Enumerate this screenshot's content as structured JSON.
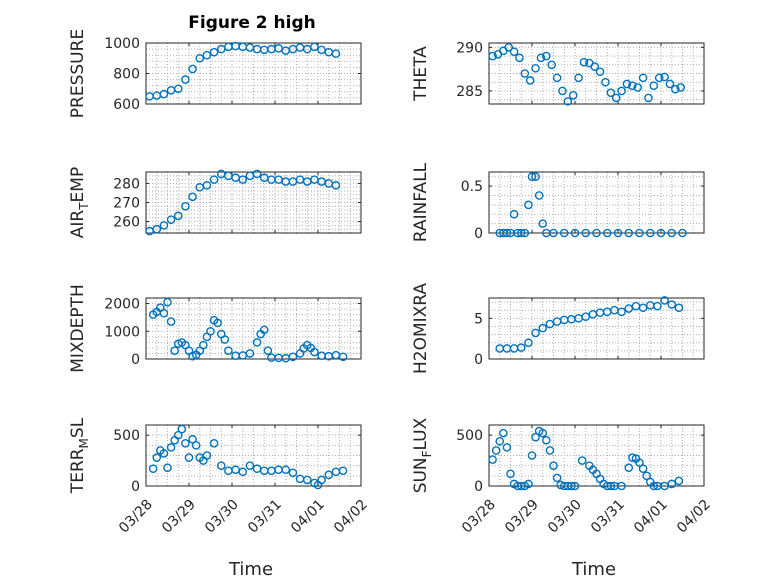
{
  "chart_data": [
    {
      "type": "scatter",
      "ylabel": "PRESSURE",
      "title": "Figure 2 high",
      "ylim": [
        600,
        1000
      ],
      "yticks": [
        600,
        800,
        1000
      ],
      "grid": true,
      "x": [
        "03/28 02:00",
        "03/28 06:00",
        "03/28 10:00",
        "03/28 14:00",
        "03/28 18:00",
        "03/28 22:00",
        "03/29 02:00",
        "03/29 06:00",
        "03/29 10:00",
        "03/29 14:00",
        "03/29 18:00",
        "03/29 22:00",
        "03/30 02:00",
        "03/30 06:00",
        "03/30 10:00",
        "03/30 14:00",
        "03/30 18:00",
        "03/30 22:00",
        "03/31 02:00",
        "03/31 06:00",
        "03/31 10:00",
        "03/31 14:00",
        "03/31 18:00",
        "03/31 22:00",
        "04/01 02:00",
        "04/01 06:00",
        "04/01 10:00"
      ],
      "y": [
        650,
        655,
        665,
        690,
        700,
        760,
        830,
        900,
        920,
        940,
        960,
        975,
        980,
        975,
        970,
        960,
        955,
        960,
        965,
        950,
        960,
        970,
        960,
        975,
        955,
        940,
        930
      ]
    },
    {
      "type": "scatter",
      "ylabel": "THETA",
      "ylim": [
        283.5,
        290.5
      ],
      "yticks": [
        285,
        290
      ],
      "grid": true,
      "x": [
        "03/28 02:00",
        "03/28 05:00",
        "03/28 08:00",
        "03/28 11:00",
        "03/28 14:00",
        "03/28 17:00",
        "03/28 20:00",
        "03/28 23:00",
        "03/29 02:00",
        "03/29 05:00",
        "03/29 08:00",
        "03/29 11:00",
        "03/29 14:00",
        "03/29 17:00",
        "03/29 20:00",
        "03/29 23:00",
        "03/30 02:00",
        "03/30 05:00",
        "03/30 08:00",
        "03/30 11:00",
        "03/30 14:00",
        "03/30 17:00",
        "03/30 20:00",
        "03/30 23:00",
        "03/31 02:00",
        "03/31 05:00",
        "03/31 08:00",
        "03/31 11:00",
        "03/31 14:00",
        "03/31 17:00",
        "03/31 20:00",
        "03/31 23:00",
        "04/01 02:00",
        "04/01 05:00",
        "04/01 08:00",
        "04/01 11:00"
      ],
      "y": [
        289,
        289.2,
        289.6,
        290,
        289.5,
        288.8,
        287,
        286.2,
        287.6,
        288.8,
        289,
        288,
        286.5,
        285,
        283.8,
        284.5,
        286.5,
        288.3,
        288.2,
        287.8,
        287.2,
        286,
        284.8,
        284.2,
        285,
        285.8,
        285.6,
        285.4,
        286.5,
        284.2,
        285.6,
        286.5,
        286.6,
        285.8,
        285.2,
        285.4
      ]
    },
    {
      "type": "scatter",
      "ylabel": "AIR_TEMP",
      "ylim": [
        254,
        286
      ],
      "yticks": [
        260,
        270,
        280
      ],
      "grid": true,
      "x": [
        "03/28 02:00",
        "03/28 06:00",
        "03/28 10:00",
        "03/28 14:00",
        "03/28 18:00",
        "03/28 22:00",
        "03/29 02:00",
        "03/29 06:00",
        "03/29 10:00",
        "03/29 14:00",
        "03/29 18:00",
        "03/29 22:00",
        "03/30 02:00",
        "03/30 06:00",
        "03/30 10:00",
        "03/30 14:00",
        "03/30 18:00",
        "03/30 22:00",
        "03/31 02:00",
        "03/31 06:00",
        "03/31 10:00",
        "03/31 14:00",
        "03/31 18:00",
        "03/31 22:00",
        "04/01 02:00",
        "04/01 06:00",
        "04/01 10:00"
      ],
      "y": [
        255,
        256,
        258,
        261,
        263,
        268,
        273,
        278,
        279,
        282,
        285,
        284,
        283,
        282,
        284,
        285,
        283,
        282,
        282,
        281,
        281,
        282,
        281,
        282,
        281,
        280,
        279
      ]
    },
    {
      "type": "scatter",
      "ylabel": "RAINFALL",
      "ylim": [
        0,
        0.65
      ],
      "yticks": [
        0,
        0.5
      ],
      "grid": true,
      "x": [
        "03/28 06:00",
        "03/28 08:00",
        "03/28 10:00",
        "03/28 12:00",
        "03/28 14:00",
        "03/28 16:00",
        "03/28 18:00",
        "03/28 20:00",
        "03/28 22:00",
        "03/29 00:00",
        "03/29 02:00",
        "03/29 04:00",
        "03/29 06:00",
        "03/29 08:00",
        "03/29 12:00",
        "03/29 18:00",
        "03/30 00:00",
        "03/30 06:00",
        "03/30 12:00",
        "03/30 18:00",
        "03/31 00:00",
        "03/31 06:00",
        "03/31 12:00",
        "03/31 18:00",
        "04/01 00:00",
        "04/01 06:00",
        "04/01 12:00"
      ],
      "y": [
        0,
        0,
        0,
        0,
        0.2,
        0,
        0,
        0,
        0.3,
        0.6,
        0.6,
        0.4,
        0.1,
        0,
        0,
        0,
        0,
        0,
        0,
        0,
        0,
        0,
        0,
        0,
        0,
        0,
        0
      ]
    },
    {
      "type": "scatter",
      "ylabel": "MIXDEPTH",
      "ylim": [
        0,
        2200
      ],
      "yticks": [
        0,
        1000,
        2000
      ],
      "grid": true,
      "x": [
        "03/28 04:00",
        "03/28 06:00",
        "03/28 08:00",
        "03/28 10:00",
        "03/28 12:00",
        "03/28 14:00",
        "03/28 16:00",
        "03/28 18:00",
        "03/28 20:00",
        "03/28 22:00",
        "03/29 00:00",
        "03/29 02:00",
        "03/29 04:00",
        "03/29 06:00",
        "03/29 08:00",
        "03/29 10:00",
        "03/29 12:00",
        "03/29 14:00",
        "03/29 16:00",
        "03/29 18:00",
        "03/29 20:00",
        "03/29 22:00",
        "03/30 02:00",
        "03/30 06:00",
        "03/30 10:00",
        "03/30 14:00",
        "03/30 16:00",
        "03/30 18:00",
        "03/30 20:00",
        "03/30 22:00",
        "03/31 02:00",
        "03/31 06:00",
        "03/31 10:00",
        "03/31 14:00",
        "03/31 16:00",
        "03/31 18:00",
        "03/31 20:00",
        "03/31 22:00",
        "04/01 02:00",
        "04/01 06:00",
        "04/01 10:00",
        "04/01 14:00"
      ],
      "y": [
        1600,
        1700,
        1850,
        1650,
        2050,
        1350,
        300,
        550,
        600,
        500,
        300,
        100,
        150,
        300,
        500,
        800,
        1000,
        1400,
        1300,
        900,
        700,
        300,
        120,
        130,
        200,
        600,
        900,
        1050,
        300,
        50,
        40,
        30,
        80,
        200,
        380,
        500,
        400,
        250,
        120,
        100,
        140,
        80
      ]
    },
    {
      "type": "scatter",
      "ylabel": "H2OMIXRA",
      "ylim": [
        0,
        7.5
      ],
      "yticks": [
        0,
        5
      ],
      "grid": true,
      "x": [
        "03/28 06:00",
        "03/28 10:00",
        "03/28 14:00",
        "03/28 18:00",
        "03/28 22:00",
        "03/29 02:00",
        "03/29 06:00",
        "03/29 10:00",
        "03/29 14:00",
        "03/29 18:00",
        "03/29 22:00",
        "03/30 02:00",
        "03/30 06:00",
        "03/30 10:00",
        "03/30 14:00",
        "03/30 18:00",
        "03/30 22:00",
        "03/31 02:00",
        "03/31 06:00",
        "03/31 10:00",
        "03/31 14:00",
        "03/31 18:00",
        "03/31 22:00",
        "04/01 02:00",
        "04/01 06:00",
        "04/01 10:00"
      ],
      "y": [
        1.3,
        1.3,
        1.3,
        1.4,
        2,
        3.2,
        3.8,
        4.3,
        4.6,
        4.8,
        4.9,
        5,
        5.2,
        5.5,
        5.7,
        5.8,
        6,
        5.8,
        6.2,
        6.5,
        6.3,
        6.6,
        6.5,
        7.2,
        6.7,
        6.3
      ]
    },
    {
      "type": "scatter",
      "ylabel": "TERR_MSL",
      "ylim": [
        0,
        600
      ],
      "yticks": [
        0,
        500
      ],
      "grid": true,
      "x": [
        "03/28 04:00",
        "03/28 06:00",
        "03/28 08:00",
        "03/28 10:00",
        "03/28 12:00",
        "03/28 14:00",
        "03/28 16:00",
        "03/28 18:00",
        "03/28 20:00",
        "03/28 22:00",
        "03/29 00:00",
        "03/29 02:00",
        "03/29 04:00",
        "03/29 06:00",
        "03/29 08:00",
        "03/29 10:00",
        "03/29 14:00",
        "03/29 18:00",
        "03/29 22:00",
        "03/30 02:00",
        "03/30 06:00",
        "03/30 10:00",
        "03/30 14:00",
        "03/30 18:00",
        "03/30 22:00",
        "03/31 02:00",
        "03/31 06:00",
        "03/31 10:00",
        "03/31 14:00",
        "03/31 18:00",
        "03/31 22:00",
        "04/01 00:00",
        "04/01 02:00",
        "04/01 06:00",
        "04/01 10:00",
        "04/01 14:00"
      ],
      "y": [
        170,
        280,
        350,
        320,
        180,
        380,
        450,
        500,
        560,
        420,
        280,
        460,
        400,
        280,
        250,
        300,
        420,
        200,
        150,
        160,
        140,
        200,
        170,
        150,
        150,
        160,
        160,
        130,
        70,
        60,
        30,
        10,
        60,
        110,
        140,
        150
      ]
    },
    {
      "type": "scatter",
      "ylabel": "SUN_FLUX",
      "ylim": [
        0,
        600
      ],
      "yticks": [
        0,
        500
      ],
      "grid": true,
      "x": [
        "03/28 02:00",
        "03/28 04:00",
        "03/28 06:00",
        "03/28 08:00",
        "03/28 10:00",
        "03/28 12:00",
        "03/28 14:00",
        "03/28 16:00",
        "03/28 18:00",
        "03/28 20:00",
        "03/28 22:00",
        "03/29 00:00",
        "03/29 02:00",
        "03/29 04:00",
        "03/29 06:00",
        "03/29 08:00",
        "03/29 10:00",
        "03/29 12:00",
        "03/29 14:00",
        "03/29 16:00",
        "03/29 18:00",
        "03/29 20:00",
        "03/29 22:00",
        "03/30 00:00",
        "03/30 04:00",
        "03/30 08:00",
        "03/30 10:00",
        "03/30 12:00",
        "03/30 14:00",
        "03/30 16:00",
        "03/30 18:00",
        "03/30 20:00",
        "03/30 22:00",
        "03/31 02:00",
        "03/31 06:00",
        "03/31 08:00",
        "03/31 10:00",
        "03/31 12:00",
        "03/31 14:00",
        "03/31 16:00",
        "03/31 18:00",
        "03/31 20:00",
        "03/31 22:00",
        "04/01 02:00",
        "04/01 06:00",
        "04/01 10:00"
      ],
      "y": [
        260,
        350,
        440,
        520,
        380,
        120,
        20,
        0,
        0,
        0,
        20,
        300,
        480,
        540,
        520,
        450,
        350,
        200,
        80,
        10,
        0,
        0,
        0,
        0,
        250,
        200,
        160,
        120,
        70,
        20,
        0,
        0,
        0,
        0,
        180,
        280,
        270,
        230,
        170,
        100,
        40,
        0,
        0,
        0,
        20,
        50
      ]
    }
  ],
  "labels": {
    "title": "Figure 2 high",
    "xlabel": "Time",
    "xticks": [
      "03/28",
      "03/29",
      "03/30",
      "03/31",
      "04/01",
      "04/02"
    ],
    "ylabels": [
      {
        "main": "PRESSURE",
        "sub": ""
      },
      {
        "main": "THETA",
        "sub": ""
      },
      {
        "main": "AIR",
        "sub": "T",
        "rest": "EMP"
      },
      {
        "main": "RAINFALL",
        "sub": ""
      },
      {
        "main": "MIXDEPTH",
        "sub": ""
      },
      {
        "main": "H2OMIXRA",
        "sub": ""
      },
      {
        "main": "TERR",
        "sub": "M",
        "rest": "SL"
      },
      {
        "main": "SUN",
        "sub": "F",
        "rest": "LUX"
      }
    ]
  },
  "colors": {
    "marker": "#0072BD",
    "axis": "#262626",
    "grid": "#b0b0b0"
  }
}
